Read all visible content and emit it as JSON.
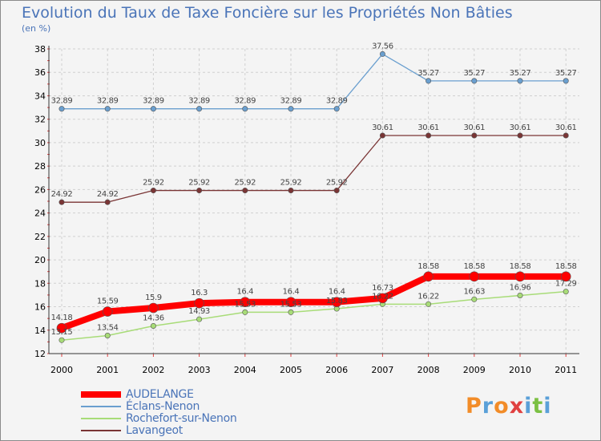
{
  "chart_data": {
    "type": "line",
    "title": "Evolution du Taux de Taxe Foncière sur les Propriétés Non Bâties",
    "subtitle": "(en %)",
    "x": [
      "2000",
      "2001",
      "2002",
      "2003",
      "2004",
      "2005",
      "2006",
      "2007",
      "2008",
      "2009",
      "2010",
      "2011"
    ],
    "ylim": [
      12,
      38
    ],
    "yticks": [
      "12",
      "14",
      "16",
      "18",
      "20",
      "22",
      "24",
      "26",
      "28",
      "30",
      "32",
      "34",
      "36",
      "38"
    ],
    "grid": true,
    "legend_position": "bottom-left",
    "series": [
      {
        "name": "Éclans-Nenon",
        "color": "#6a9fcf",
        "values": [
          32.89,
          32.89,
          32.89,
          32.89,
          32.89,
          32.89,
          32.89,
          37.56,
          35.27,
          35.27,
          35.27,
          35.27
        ],
        "labels": [
          "32.89",
          "32.89",
          "32.89",
          "32.89",
          "32.89",
          "32.89",
          "32.89",
          "37.56",
          "35.27",
          "35.27",
          "35.27",
          "35.27"
        ]
      },
      {
        "name": "Lavangeot",
        "color": "#7a3535",
        "values": [
          24.92,
          24.92,
          25.92,
          25.92,
          25.92,
          25.92,
          25.92,
          30.61,
          30.61,
          30.61,
          30.61,
          30.61
        ],
        "labels": [
          "24.92",
          "24.92",
          "25.92",
          "25.92",
          "25.92",
          "25.92",
          "25.92",
          "30.61",
          "30.61",
          "30.61",
          "30.61",
          "30.61"
        ]
      },
      {
        "name": "Rochefort-sur-Nenon",
        "color": "#a8dc78",
        "values": [
          13.15,
          13.54,
          14.36,
          14.93,
          15.53,
          15.53,
          15.83,
          16.22,
          16.22,
          16.63,
          16.96,
          17.29
        ],
        "labels": [
          "13.15",
          "13.54",
          "14.36",
          "14.93",
          "15.53",
          "15.53",
          "15.83",
          "16.22",
          "16.22",
          "16.63",
          "16.96",
          "17.29"
        ]
      },
      {
        "name": "AUDELANGE",
        "color": "#ff0000",
        "values": [
          14.18,
          15.59,
          15.9,
          16.3,
          16.4,
          16.4,
          16.4,
          16.73,
          18.58,
          18.58,
          18.58,
          18.58
        ],
        "labels": [
          "14.18",
          "15.59",
          "15.9",
          "16.3",
          "16.4",
          "16.4",
          "16.4",
          "16.73",
          "18.58",
          "18.58",
          "18.58",
          "18.58"
        ]
      }
    ],
    "legend": [
      {
        "name": "AUDELANGE",
        "color": "#ff0000"
      },
      {
        "name": "Éclans-Nenon",
        "color": "#6a9fcf"
      },
      {
        "name": "Rochefort-sur-Nenon",
        "color": "#a8dc78"
      },
      {
        "name": "Lavangeot",
        "color": "#7a3535"
      }
    ]
  },
  "logo": {
    "text": "Proxiti",
    "colors": [
      "#f28c28",
      "#5aa0d8",
      "#f28c28",
      "#e04040",
      "#5aa0d8",
      "#7bc043",
      "#5aa0d8"
    ]
  }
}
